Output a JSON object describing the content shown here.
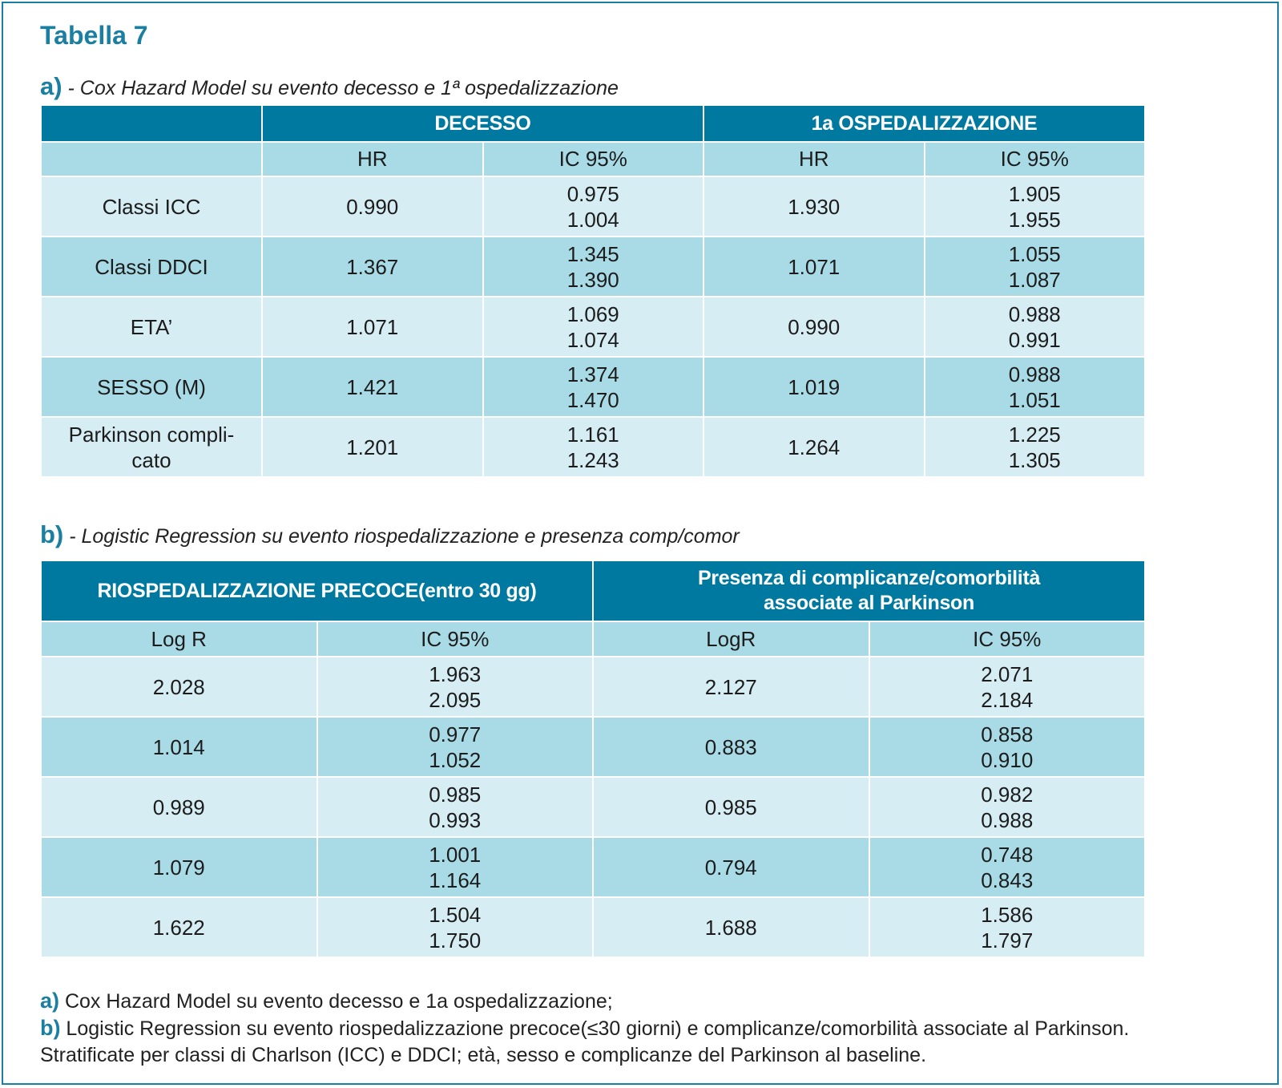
{
  "title": "Tabella 7",
  "section_a": {
    "key": "a)",
    "caption": " - Cox Hazard Model su evento decesso e 1ª ospedalizzazione",
    "group_headers": [
      "",
      "DECESSO",
      "1a OSPEDALIZZAZIONE"
    ],
    "sub_headers": [
      "",
      "HR",
      "IC 95%",
      "HR",
      "IC 95%"
    ],
    "rows": [
      {
        "label": "Classi ICC",
        "hr1": "0.990",
        "ic1_low": "0.975",
        "ic1_high": "1.004",
        "hr2": "1.930",
        "ic2_low": "1.905",
        "ic2_high": "1.955"
      },
      {
        "label": "Classi DDCI",
        "hr1": "1.367",
        "ic1_low": "1.345",
        "ic1_high": "1.390",
        "hr2": "1.071",
        "ic2_low": "1.055",
        "ic2_high": "1.087"
      },
      {
        "label": "ETA’",
        "hr1": "1.071",
        "ic1_low": "1.069",
        "ic1_high": "1.074",
        "hr2": "0.990",
        "ic2_low": "0.988",
        "ic2_high": "0.991"
      },
      {
        "label": "SESSO (M)",
        "hr1": "1.421",
        "ic1_low": "1.374",
        "ic1_high": "1.470",
        "hr2": "1.019",
        "ic2_low": "0.988",
        "ic2_high": "1.051"
      },
      {
        "label_line1": "Parkinson compli-",
        "label_line2": "cato",
        "hr1": "1.201",
        "ic1_low": "1.161",
        "ic1_high": "1.243",
        "hr2": "1.264",
        "ic2_low": "1.225",
        "ic2_high": "1.305"
      }
    ]
  },
  "section_b": {
    "key": "b)",
    "caption": " - Logistic Regression su evento riospedalizzazione e presenza comp/comor",
    "group_header_1": "RIOSPEDALIZZAZIONE PRECOCE(entro 30 gg)",
    "group_header_2_line1": "Presenza di complicanze/comorbilità",
    "group_header_2_line2": "associate al Parkinson",
    "sub_headers": [
      "Log R",
      "IC 95%",
      "LogR",
      "IC 95%"
    ],
    "rows": [
      {
        "lr1": "2.028",
        "ic1_low": "1.963",
        "ic1_high": "2.095",
        "lr2": "2.127",
        "ic2_low": "2.071",
        "ic2_high": "2.184"
      },
      {
        "lr1": "1.014",
        "ic1_low": "0.977",
        "ic1_high": "1.052",
        "lr2": "0.883",
        "ic2_low": "0.858",
        "ic2_high": "0.910"
      },
      {
        "lr1": "0.989",
        "ic1_low": "0.985",
        "ic1_high": "0.993",
        "lr2": "0.985",
        "ic2_low": "0.982",
        "ic2_high": "0.988"
      },
      {
        "lr1": "1.079",
        "ic1_low": "1.001",
        "ic1_high": "1.164",
        "lr2": "0.794",
        "ic2_low": "0.748",
        "ic2_high": "0.843"
      },
      {
        "lr1": "1.622",
        "ic1_low": "1.504",
        "ic1_high": "1.750",
        "lr2": "1.688",
        "ic2_low": "1.586",
        "ic2_high": "1.797"
      }
    ]
  },
  "notes": {
    "a_key": "a)",
    "a_text": " Cox Hazard Model su evento decesso e 1a ospedalizzazione;",
    "b_key": "b)",
    "b_text": " Logistic Regression su evento riospedalizzazione precoce(≤30 giorni) e complicanze/comorbilità associate al Parkinson.",
    "c_text": "Stratificate per classi di Charlson (ICC) e DDCI; età, sesso e complicanze del Parkinson al baseline."
  },
  "colors": {
    "accent": "#1a7fa0",
    "header_dark": "#0079a0",
    "row_dark": "#a8dbe6",
    "row_light": "#d6edf4"
  }
}
